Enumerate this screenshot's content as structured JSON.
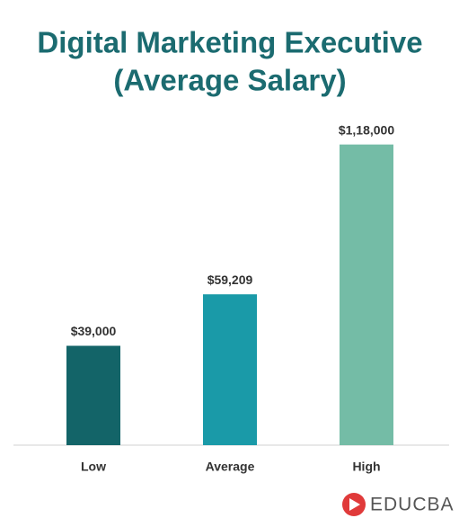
{
  "chart_data": {
    "type": "bar",
    "title": [
      "Digital Marketing Executive",
      "(Average Salary)"
    ],
    "categories": [
      "Low",
      "Average",
      "High"
    ],
    "values": [
      39000,
      59209,
      118000
    ],
    "value_labels": [
      "$39,000",
      "$59,209",
      "$1,18,000"
    ],
    "colors": [
      "#136468",
      "#1a9aa8",
      "#74bca6"
    ],
    "ylim": [
      0,
      120000
    ],
    "watermark": "EDUCBA"
  }
}
